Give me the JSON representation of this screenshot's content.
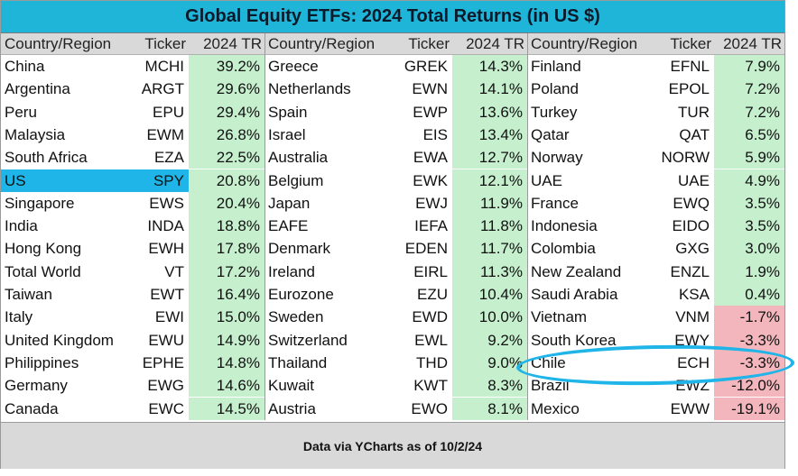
{
  "title": "Global Equity ETFs: 2024 Total Returns (in US $)",
  "footer": "Data via YCharts as of 10/2/24",
  "colors": {
    "title_bg": "#1fb5d8",
    "header_bg": "#d9d9d9",
    "positive_fill": "#c6efce",
    "negative_fill": "#f4b6bd",
    "highlight_row": "#1fb5e8",
    "highlight_circle": "#1fb5e8"
  },
  "highlighted_row": "US",
  "circled_row": "Chile",
  "chart_data": {
    "type": "table",
    "columns": [
      "Country/Region",
      "Ticker",
      "2024 TR"
    ],
    "rows": [
      [
        "China",
        "MCHI",
        "39.2%"
      ],
      [
        "Argentina",
        "ARGT",
        "29.6%"
      ],
      [
        "Peru",
        "EPU",
        "29.4%"
      ],
      [
        "Malaysia",
        "EWM",
        "26.8%"
      ],
      [
        "South Africa",
        "EZA",
        "22.5%"
      ],
      [
        "US",
        "SPY",
        "20.8%"
      ],
      [
        "Singapore",
        "EWS",
        "20.4%"
      ],
      [
        "India",
        "INDA",
        "18.8%"
      ],
      [
        "Hong Kong",
        "EWH",
        "17.8%"
      ],
      [
        "Total World",
        "VT",
        "17.2%"
      ],
      [
        "Taiwan",
        "EWT",
        "16.4%"
      ],
      [
        "Italy",
        "EWI",
        "15.0%"
      ],
      [
        "United Kingdom",
        "EWU",
        "14.9%"
      ],
      [
        "Philippines",
        "EPHE",
        "14.8%"
      ],
      [
        "Germany",
        "EWG",
        "14.6%"
      ],
      [
        "Canada",
        "EWC",
        "14.5%"
      ],
      [
        "Greece",
        "GREK",
        "14.3%"
      ],
      [
        "Netherlands",
        "EWN",
        "14.1%"
      ],
      [
        "Spain",
        "EWP",
        "13.6%"
      ],
      [
        "Israel",
        "EIS",
        "13.4%"
      ],
      [
        "Australia",
        "EWA",
        "12.7%"
      ],
      [
        "Belgium",
        "EWK",
        "12.1%"
      ],
      [
        "Japan",
        "EWJ",
        "11.9%"
      ],
      [
        "EAFE",
        "IEFA",
        "11.8%"
      ],
      [
        "Denmark",
        "EDEN",
        "11.7%"
      ],
      [
        "Ireland",
        "EIRL",
        "11.3%"
      ],
      [
        "Eurozone",
        "EZU",
        "10.4%"
      ],
      [
        "Sweden",
        "EWD",
        "10.0%"
      ],
      [
        "Switzerland",
        "EWL",
        "9.2%"
      ],
      [
        "Thailand",
        "THD",
        "9.0%"
      ],
      [
        "Kuwait",
        "KWT",
        "8.3%"
      ],
      [
        "Austria",
        "EWO",
        "8.1%"
      ],
      [
        "Finland",
        "EFNL",
        "7.9%"
      ],
      [
        "Poland",
        "EPOL",
        "7.2%"
      ],
      [
        "Turkey",
        "TUR",
        "7.2%"
      ],
      [
        "Qatar",
        "QAT",
        "6.5%"
      ],
      [
        "Norway",
        "NORW",
        "5.9%"
      ],
      [
        "UAE",
        "UAE",
        "4.9%"
      ],
      [
        "France",
        "EWQ",
        "3.5%"
      ],
      [
        "Indonesia",
        "EIDO",
        "3.5%"
      ],
      [
        "Colombia",
        "GXG",
        "3.0%"
      ],
      [
        "New Zealand",
        "ENZL",
        "1.9%"
      ],
      [
        "Saudi Arabia",
        "KSA",
        "0.4%"
      ],
      [
        "Vietnam",
        "VNM",
        "-1.7%"
      ],
      [
        "South Korea",
        "EWY",
        "-3.3%"
      ],
      [
        "Chile",
        "ECH",
        "-3.3%"
      ],
      [
        "Brazil",
        "EWZ",
        "-12.0%"
      ],
      [
        "Mexico",
        "EWW",
        "-19.1%"
      ]
    ]
  }
}
